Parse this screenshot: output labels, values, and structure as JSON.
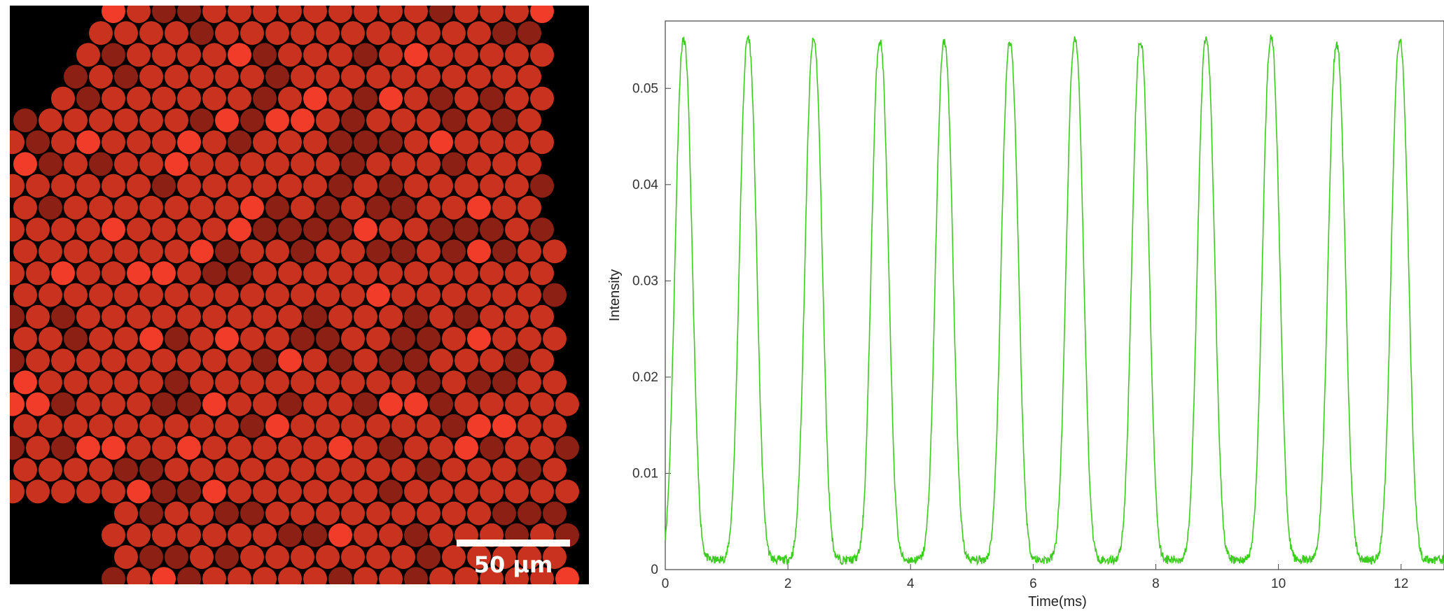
{
  "micrograph": {
    "scale_bar_label": "50 µm",
    "colors": {
      "background": "#000000",
      "droplet": "#c8321e",
      "bright": "#f03c28",
      "dark": "#8c2014",
      "scale_bar": "#ffffff"
    }
  },
  "chart_data": {
    "type": "line",
    "title": "",
    "xlabel": "Time(ms)",
    "ylabel": "Intensity",
    "xlim": [
      0,
      12.7
    ],
    "ylim": [
      0,
      0.057
    ],
    "xticks": [
      0,
      2,
      4,
      6,
      8,
      10,
      12
    ],
    "yticks": [
      0,
      0.01,
      0.02,
      0.03,
      0.04,
      0.05
    ],
    "ytick_labels": [
      "0",
      "0.01",
      "0.02",
      "0.03",
      "0.04",
      "0.05"
    ],
    "grid": false,
    "series": [
      {
        "color": "#3ccc1e",
        "peak_times": [
          0.3,
          1.35,
          2.42,
          3.5,
          4.55,
          5.62,
          6.68,
          7.75,
          8.82,
          9.88,
          10.95,
          11.98
        ],
        "peak_values": [
          0.055,
          0.0553,
          0.055,
          0.0549,
          0.0548,
          0.0548,
          0.0551,
          0.0549,
          0.0551,
          0.0552,
          0.0545,
          0.0549
        ],
        "baseline": 0.001
      }
    ]
  }
}
